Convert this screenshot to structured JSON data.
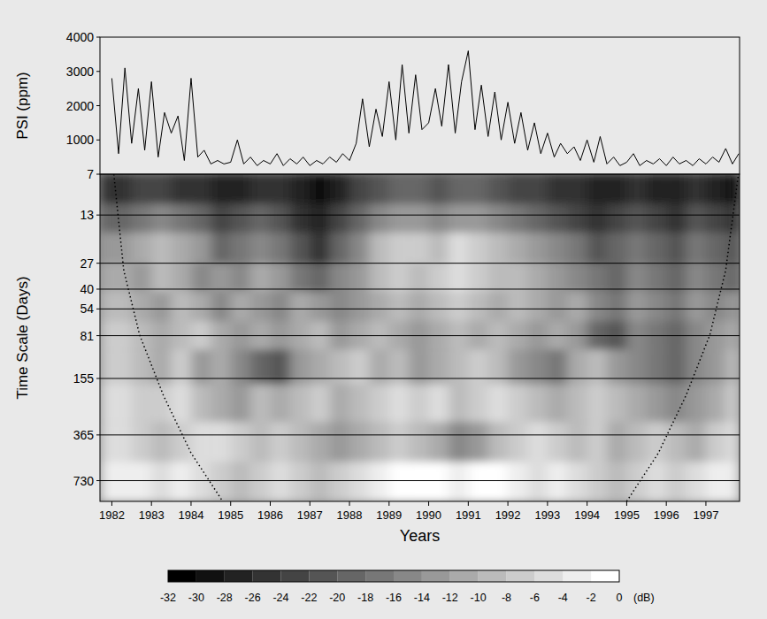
{
  "chart_data": [
    {
      "type": "line",
      "ylabel": "PSI (ppm)",
      "color": "#000000",
      "grid": false,
      "tick_labels": "y",
      "xlim": [
        1981.7,
        1997.85
      ],
      "ylim": [
        0,
        4000
      ],
      "yticks": [
        1000,
        2000,
        3000,
        4000
      ],
      "x": [
        1982.0,
        1982.17,
        1982.33,
        1982.5,
        1982.67,
        1982.83,
        1983.0,
        1983.17,
        1983.33,
        1983.5,
        1983.67,
        1983.83,
        1984.0,
        1984.17,
        1984.33,
        1984.5,
        1984.67,
        1984.83,
        1985.0,
        1985.17,
        1985.33,
        1985.5,
        1985.67,
        1985.83,
        1986.0,
        1986.17,
        1986.33,
        1986.5,
        1986.67,
        1986.83,
        1987.0,
        1987.17,
        1987.33,
        1987.5,
        1987.67,
        1987.83,
        1988.0,
        1988.17,
        1988.33,
        1988.5,
        1988.67,
        1988.83,
        1989.0,
        1989.17,
        1989.33,
        1989.5,
        1989.67,
        1989.83,
        1990.0,
        1990.17,
        1990.33,
        1990.5,
        1990.67,
        1990.83,
        1991.0,
        1991.17,
        1991.33,
        1991.5,
        1991.67,
        1991.83,
        1992.0,
        1992.17,
        1992.33,
        1992.5,
        1992.67,
        1992.83,
        1993.0,
        1993.17,
        1993.33,
        1993.5,
        1993.67,
        1993.83,
        1994.0,
        1994.17,
        1994.33,
        1994.5,
        1994.67,
        1994.83,
        1995.0,
        1995.17,
        1995.33,
        1995.5,
        1995.67,
        1995.83,
        1996.0,
        1996.17,
        1996.33,
        1996.5,
        1996.67,
        1996.83,
        1997.0,
        1997.17,
        1997.33,
        1997.5,
        1997.67,
        1997.83
      ],
      "values": [
        2800,
        600,
        3100,
        900,
        2500,
        700,
        2700,
        500,
        1800,
        1200,
        1700,
        400,
        2800,
        500,
        700,
        300,
        400,
        300,
        350,
        1000,
        300,
        500,
        250,
        400,
        300,
        600,
        250,
        450,
        300,
        500,
        250,
        400,
        300,
        500,
        350,
        600,
        400,
        900,
        2200,
        800,
        1900,
        1100,
        2700,
        1000,
        3200,
        1200,
        2900,
        1300,
        1500,
        2500,
        1400,
        3200,
        1200,
        2700,
        3600,
        1300,
        2600,
        1100,
        2400,
        1000,
        2100,
        900,
        1800,
        700,
        1500,
        600,
        1200,
        500,
        900,
        600,
        800,
        400,
        1000,
        350,
        1100,
        300,
        500,
        250,
        350,
        600,
        250,
        400,
        300,
        450,
        250,
        500,
        300,
        400,
        250,
        450,
        300,
        500,
        350,
        750,
        300,
        600
      ]
    },
    {
      "type": "heatmap",
      "xlabel": "Years",
      "ylabel": "Time Scale (Days)",
      "log": "y",
      "grid": true,
      "xlim": [
        1981.7,
        1997.85
      ],
      "xticks": [
        1982,
        1983,
        1984,
        1985,
        1986,
        1987,
        1988,
        1989,
        1990,
        1991,
        1992,
        1993,
        1994,
        1995,
        1996,
        1997
      ],
      "ylim": [
        7,
        1000
      ],
      "yticks": [
        7,
        13,
        27,
        40,
        54,
        81,
        155,
        365,
        730
      ],
      "x_edges": [
        1981.7,
        1982.5,
        1983.0,
        1983.5,
        1984.0,
        1984.5,
        1985.0,
        1985.5,
        1986.0,
        1986.5,
        1987.0,
        1987.5,
        1988.0,
        1988.5,
        1989.0,
        1989.5,
        1990.0,
        1990.5,
        1991.0,
        1991.5,
        1992.0,
        1992.5,
        1993.0,
        1993.5,
        1994.0,
        1994.5,
        1995.0,
        1995.5,
        1996.0,
        1996.5,
        1997.0,
        1997.5,
        1997.85
      ],
      "y_edges": [
        7,
        11,
        17,
        27,
        42,
        65,
        100,
        170,
        300,
        550,
        1000
      ],
      "cells": [
        [
          -26,
          -24,
          -24,
          -26,
          -26,
          -28,
          -28,
          -26,
          -26,
          -28,
          -30,
          -28,
          -24,
          -22,
          -20,
          -20,
          -22,
          -20,
          -20,
          -22,
          -24,
          -24,
          -26,
          -26,
          -28,
          -28,
          -26,
          -28,
          -28,
          -26,
          -28,
          -30
        ],
        [
          -20,
          -18,
          -16,
          -18,
          -20,
          -24,
          -22,
          -20,
          -22,
          -26,
          -28,
          -24,
          -20,
          -16,
          -14,
          -14,
          -16,
          -14,
          -14,
          -16,
          -18,
          -20,
          -22,
          -24,
          -26,
          -24,
          -22,
          -24,
          -26,
          -22,
          -24,
          -26
        ],
        [
          -14,
          -12,
          -10,
          -12,
          -14,
          -20,
          -18,
          -16,
          -18,
          -22,
          -26,
          -20,
          -16,
          -10,
          -8,
          -8,
          -10,
          -6,
          -8,
          -10,
          -12,
          -14,
          -16,
          -18,
          -22,
          -20,
          -18,
          -20,
          -22,
          -18,
          -20,
          -22
        ],
        [
          -12,
          -14,
          -10,
          -12,
          -16,
          -14,
          -16,
          -12,
          -14,
          -18,
          -20,
          -16,
          -14,
          -10,
          -8,
          -10,
          -8,
          -6,
          -8,
          -10,
          -10,
          -12,
          -14,
          -16,
          -18,
          -20,
          -16,
          -18,
          -20,
          -16,
          -18,
          -20
        ],
        [
          -10,
          -12,
          -14,
          -10,
          -12,
          -16,
          -12,
          -14,
          -16,
          -12,
          -14,
          -16,
          -14,
          -12,
          -10,
          -12,
          -10,
          -8,
          -10,
          -12,
          -10,
          -12,
          -14,
          -12,
          -16,
          -18,
          -14,
          -16,
          -18,
          -14,
          -16,
          -14
        ],
        [
          -8,
          -10,
          -12,
          -10,
          -8,
          -12,
          -14,
          -12,
          -14,
          -12,
          -10,
          -14,
          -12,
          -10,
          -12,
          -14,
          -12,
          -10,
          -12,
          -10,
          -12,
          -14,
          -12,
          -14,
          -20,
          -22,
          -16,
          -18,
          -20,
          -16,
          -14,
          -12
        ],
        [
          -8,
          -10,
          -12,
          -8,
          -14,
          -12,
          -16,
          -20,
          -22,
          -14,
          -12,
          -10,
          -8,
          -12,
          -10,
          -14,
          -12,
          -10,
          -8,
          -10,
          -14,
          -16,
          -18,
          -12,
          -10,
          -14,
          -16,
          -18,
          -20,
          -16,
          -14,
          -10
        ],
        [
          -6,
          -8,
          -8,
          -6,
          -10,
          -12,
          -14,
          -10,
          -12,
          -10,
          -8,
          -12,
          -10,
          -8,
          -6,
          -8,
          -6,
          -10,
          -8,
          -6,
          -8,
          -10,
          -12,
          -10,
          -8,
          -10,
          -12,
          -14,
          -16,
          -14,
          -12,
          -8
        ],
        [
          -6,
          -8,
          -10,
          -8,
          -6,
          -6,
          -8,
          -10,
          -8,
          -10,
          -12,
          -14,
          -12,
          -10,
          -8,
          -10,
          -12,
          -16,
          -14,
          -10,
          -8,
          -6,
          -8,
          -10,
          -8,
          -12,
          -10,
          -8,
          -10,
          -12,
          -8,
          -6
        ],
        [
          -4,
          -4,
          -6,
          -4,
          -6,
          -8,
          -10,
          -8,
          -6,
          -8,
          -10,
          -8,
          -6,
          -4,
          -2,
          -2,
          -2,
          -4,
          -2,
          -2,
          -4,
          -6,
          -4,
          -6,
          -8,
          -10,
          -8,
          -6,
          -8,
          -6,
          -4,
          -4
        ]
      ],
      "coi": {
        "x": [
          1982.05,
          1982.3,
          1982.7,
          1983.3,
          1984.0,
          1984.8,
          1990.0,
          1995.0,
          1995.8,
          1996.5,
          1997.1,
          1997.5,
          1997.82
        ],
        "values": [
          7,
          30,
          80,
          200,
          480,
          1000,
          null,
          1000,
          480,
          200,
          80,
          30,
          7
        ]
      },
      "colorbar": {
        "range": [
          -32,
          0
        ],
        "ticks": [
          -32,
          -30,
          -28,
          -26,
          -24,
          -22,
          -20,
          -18,
          -16,
          -14,
          -12,
          -10,
          -8,
          -6,
          -4,
          -2,
          0
        ],
        "label": "(dB)"
      }
    }
  ]
}
